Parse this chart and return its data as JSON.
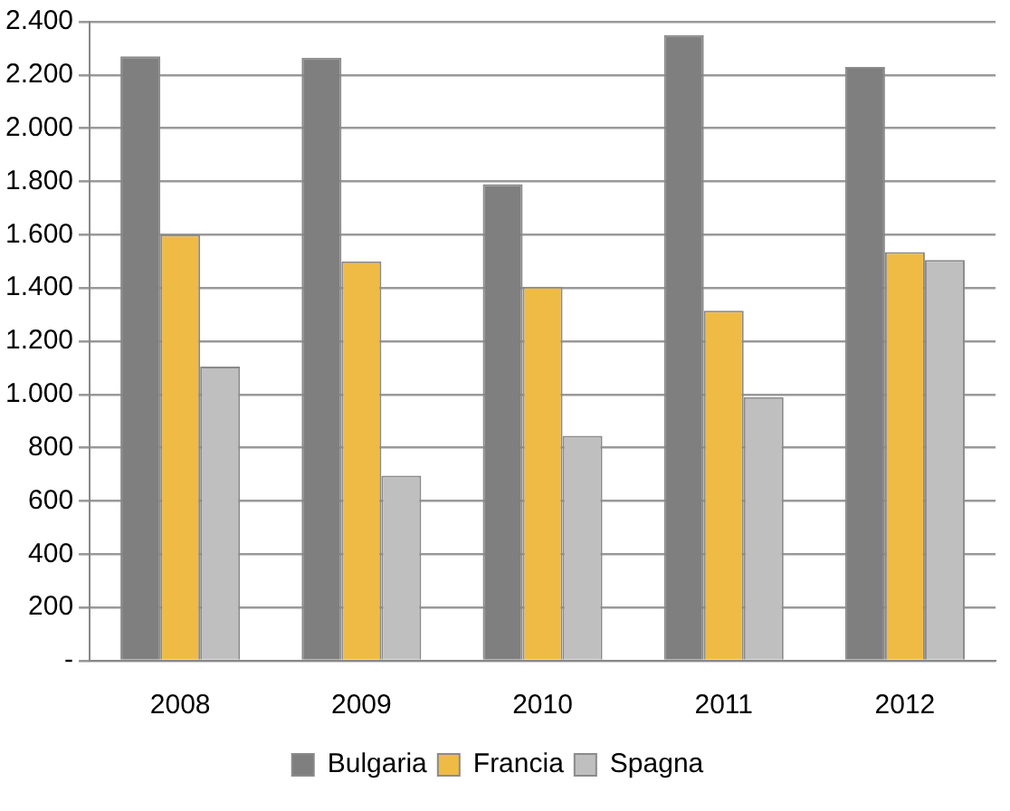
{
  "chart_data": {
    "type": "bar",
    "categories": [
      "2008",
      "2009",
      "2010",
      "2011",
      "2012"
    ],
    "series": [
      {
        "name": "Bulgaria",
        "color": "#7f7f7f",
        "values": [
          2270,
          2265,
          1790,
          2350,
          2230
        ]
      },
      {
        "name": "Francia",
        "color": "#efbb45",
        "values": [
          1600,
          1500,
          1405,
          1315,
          1535
        ]
      },
      {
        "name": "Spagna",
        "color": "#bfbfbf",
        "values": [
          1105,
          695,
          845,
          990,
          1505
        ]
      }
    ],
    "ylim": [
      0,
      2400
    ],
    "yticks": [
      {
        "value": 0,
        "label": "-"
      },
      {
        "value": 200,
        "label": "200"
      },
      {
        "value": 400,
        "label": "400"
      },
      {
        "value": 600,
        "label": "600"
      },
      {
        "value": 800,
        "label": "800"
      },
      {
        "value": 1000,
        "label": "1.000"
      },
      {
        "value": 1200,
        "label": "1.200"
      },
      {
        "value": 1400,
        "label": "1.400"
      },
      {
        "value": 1600,
        "label": "1.600"
      },
      {
        "value": 1800,
        "label": "1.800"
      },
      {
        "value": 2000,
        "label": "2.000"
      },
      {
        "value": 2200,
        "label": "2.200"
      },
      {
        "value": 2400,
        "label": "2.400"
      }
    ],
    "grid": "y",
    "legend": "bottom"
  }
}
